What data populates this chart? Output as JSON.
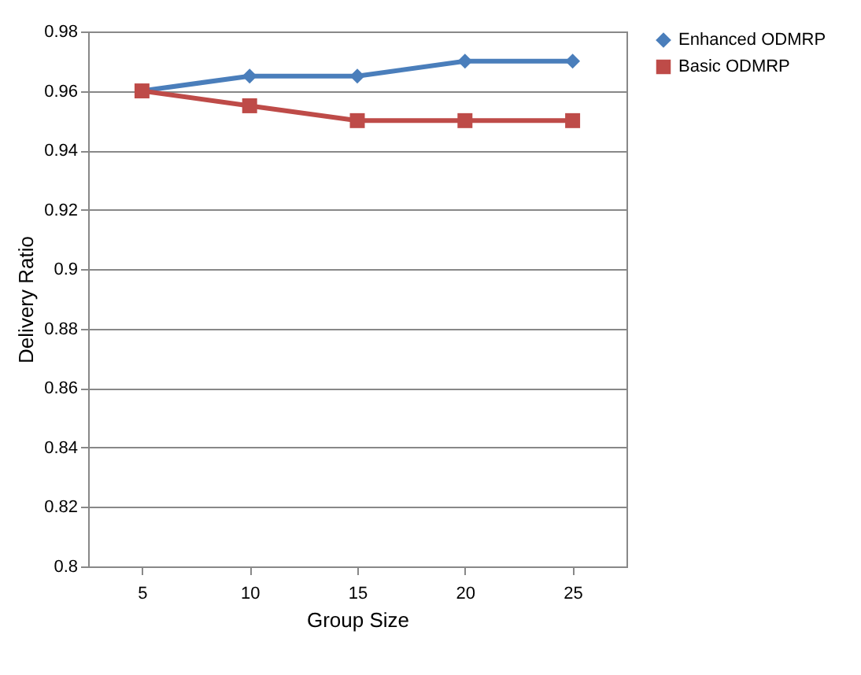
{
  "chart_data": {
    "type": "line",
    "xlabel": "Group Size",
    "ylabel": "Delivery Ratio",
    "categories": [
      "5",
      "10",
      "15",
      "20",
      "25"
    ],
    "series": [
      {
        "name": "Enhanced ODMRP",
        "color": "#4a7ebb",
        "marker": "diamond",
        "values": [
          0.96,
          0.965,
          0.965,
          0.97,
          0.97
        ]
      },
      {
        "name": "Basic ODMRP",
        "color": "#be4b48",
        "marker": "square",
        "values": [
          0.96,
          0.955,
          0.95,
          0.95,
          0.95
        ]
      }
    ],
    "ylim": [
      0.8,
      0.98
    ],
    "yticks": [
      0.8,
      0.82,
      0.84,
      0.86,
      0.88,
      0.9,
      0.92,
      0.94,
      0.96,
      0.98
    ],
    "grid": "y",
    "legend": "right"
  }
}
